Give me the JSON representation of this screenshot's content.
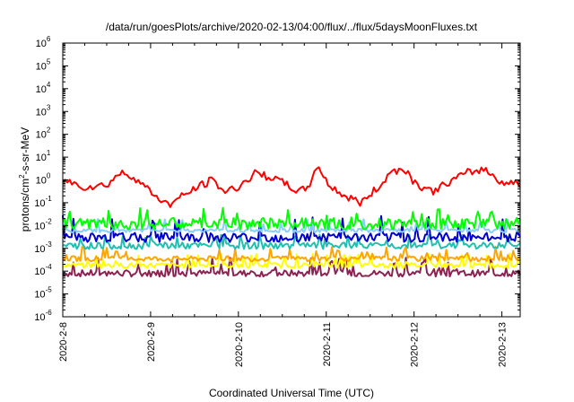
{
  "chart_data": {
    "type": "line",
    "title": "/data/run/goesPlots/archive/2020-02-13/04:00/flux/../flux/5daysMoonFluxes.txt",
    "xlabel": "Coordinated Universal Time (UTC)",
    "ylabel": "protons/cm²-s-sr-MeV",
    "ylabel_base": "protons/cm",
    "ylabel_sup": "2",
    "ylabel_rest": "-s-sr-MeV",
    "x_ticks": [
      "2020-2-8",
      "2020-2-9",
      "2020-2-10",
      "2020-2-11",
      "2020-2-12",
      "2020-2-13"
    ],
    "xlim": [
      "2020-02-08T00:00",
      "2020-02-13T05:00"
    ],
    "y_scale": "log",
    "y_tick_exponents": [
      -6,
      -5,
      -4,
      -3,
      -2,
      -1,
      0,
      1,
      2,
      3,
      4,
      5,
      6
    ],
    "ylim": [
      1e-06,
      1000000.0
    ],
    "grid": false,
    "legend": "none",
    "series": [
      {
        "color": "#ff0000",
        "x_days": [
          0,
          0.25,
          0.5,
          0.65,
          0.8,
          1.0,
          1.2,
          1.5,
          1.7,
          1.85,
          2.0,
          2.2,
          2.4,
          2.55,
          2.7,
          2.8,
          2.9,
          3.0,
          3.2,
          3.4,
          3.6,
          3.75,
          3.9,
          4.0,
          4.2,
          4.4,
          4.6,
          4.8,
          5.0,
          5.2
        ],
        "values": [
          1.0,
          0.5,
          0.6,
          2.0,
          1.5,
          0.3,
          0.08,
          0.4,
          1.0,
          0.3,
          0.5,
          2.0,
          1.2,
          0.6,
          0.3,
          0.5,
          5.0,
          0.8,
          0.2,
          0.1,
          0.5,
          2.5,
          3.0,
          0.8,
          0.3,
          0.8,
          2.0,
          3.0,
          0.8,
          0.7
        ]
      },
      {
        "color": "#00ff00",
        "base": 0.012,
        "spread": 1.8,
        "spike_max": 0.06
      },
      {
        "color": "#87cefa",
        "base": 0.006,
        "spread": 1.2,
        "spike_max": 0.02
      },
      {
        "color": "#0000cd",
        "base": 0.003,
        "spread": 1.6,
        "spike_max": 0.03
      },
      {
        "color": "#20c0b0",
        "base": 0.0013,
        "spread": 1.4,
        "spike_max": 0.004
      },
      {
        "color": "#ffa500",
        "base": 0.00035,
        "spread": 1.3,
        "spike_max": 0.0012
      },
      {
        "color": "#ffff00",
        "base": 0.00018,
        "spread": 1.3,
        "spike_max": 0.0006
      },
      {
        "color": "#8b2252",
        "base": 8e-05,
        "spread": 1.4,
        "spike_max": 0.0004
      }
    ]
  }
}
